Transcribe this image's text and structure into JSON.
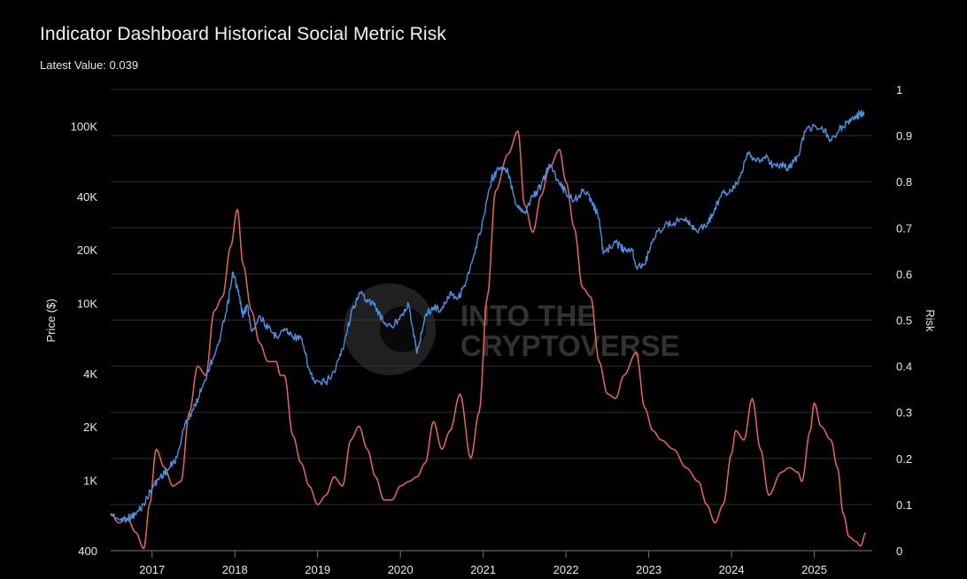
{
  "header": {
    "title": "Indicator Dashboard Historical Social Metric Risk",
    "latest_label": "Latest Value:",
    "latest_value": "0.039"
  },
  "watermark": {
    "line1": "INTO THE",
    "line2": "CRYPTOVERSE"
  },
  "colors": {
    "price": "#4f8fe0",
    "risk": "#e8665c",
    "grid": "#2f2f2f",
    "background": "#000000"
  },
  "chart_data": {
    "type": "line",
    "title": "Indicator Dashboard Historical Social Metric Risk",
    "xlabel": "",
    "ylabel_left": "Price ($)",
    "ylabel_right": "Risk",
    "y_left_scale": "log",
    "y_left_range": [
      400,
      200000
    ],
    "y_left_ticks": [
      {
        "value": 400,
        "label": "400"
      },
      {
        "value": 1000,
        "label": "1K"
      },
      {
        "value": 2000,
        "label": "2K"
      },
      {
        "value": 4000,
        "label": "4K"
      },
      {
        "value": 10000,
        "label": "10K"
      },
      {
        "value": 20000,
        "label": "20K"
      },
      {
        "value": 40000,
        "label": "40K"
      },
      {
        "value": 100000,
        "label": "100K"
      }
    ],
    "y_right_range": [
      0,
      1
    ],
    "y_right_ticks": [
      {
        "value": 0,
        "label": "0"
      },
      {
        "value": 0.1,
        "label": "0.1"
      },
      {
        "value": 0.2,
        "label": "0.2"
      },
      {
        "value": 0.3,
        "label": "0.3"
      },
      {
        "value": 0.4,
        "label": "0.4"
      },
      {
        "value": 0.5,
        "label": "0.5"
      },
      {
        "value": 0.6,
        "label": "0.6"
      },
      {
        "value": 0.7,
        "label": "0.7"
      },
      {
        "value": 0.8,
        "label": "0.8"
      },
      {
        "value": 0.9,
        "label": "0.9"
      },
      {
        "value": 1,
        "label": "1"
      }
    ],
    "x_range": [
      2016.5,
      2025.7
    ],
    "x_ticks": [
      {
        "value": 2017,
        "label": "2017"
      },
      {
        "value": 2018,
        "label": "2018"
      },
      {
        "value": 2019,
        "label": "2019"
      },
      {
        "value": 2020,
        "label": "2020"
      },
      {
        "value": 2021,
        "label": "2021"
      },
      {
        "value": 2022,
        "label": "2022"
      },
      {
        "value": 2023,
        "label": "2023"
      },
      {
        "value": 2024,
        "label": "2024"
      },
      {
        "value": 2025,
        "label": "2025"
      }
    ],
    "grid": true,
    "series": [
      {
        "key": "price",
        "axis": "left",
        "points": [
          [
            2016.5,
            650
          ],
          [
            2016.6,
            600
          ],
          [
            2016.7,
            610
          ],
          [
            2016.8,
            640
          ],
          [
            2016.9,
            730
          ],
          [
            2017.0,
            900
          ],
          [
            2017.1,
            1050
          ],
          [
            2017.2,
            1150
          ],
          [
            2017.3,
            1350
          ],
          [
            2017.4,
            2100
          ],
          [
            2017.5,
            2500
          ],
          [
            2017.6,
            3300
          ],
          [
            2017.7,
            4500
          ],
          [
            2017.8,
            5800
          ],
          [
            2017.9,
            9000
          ],
          [
            2017.98,
            15000
          ],
          [
            2018.05,
            11000
          ],
          [
            2018.1,
            8500
          ],
          [
            2018.15,
            9800
          ],
          [
            2018.2,
            7000
          ],
          [
            2018.3,
            8500
          ],
          [
            2018.4,
            7200
          ],
          [
            2018.5,
            6500
          ],
          [
            2018.6,
            7200
          ],
          [
            2018.7,
            6500
          ],
          [
            2018.8,
            6300
          ],
          [
            2018.9,
            4200
          ],
          [
            2018.97,
            3500
          ],
          [
            2019.1,
            3600
          ],
          [
            2019.2,
            4100
          ],
          [
            2019.3,
            5500
          ],
          [
            2019.4,
            8500
          ],
          [
            2019.5,
            11500
          ],
          [
            2019.6,
            10500
          ],
          [
            2019.7,
            9500
          ],
          [
            2019.8,
            7800
          ],
          [
            2019.9,
            7300
          ],
          [
            2020.0,
            8500
          ],
          [
            2020.1,
            9800
          ],
          [
            2020.2,
            5200
          ],
          [
            2020.3,
            8500
          ],
          [
            2020.4,
            9500
          ],
          [
            2020.5,
            9200
          ],
          [
            2020.6,
            11500
          ],
          [
            2020.7,
            10700
          ],
          [
            2020.8,
            13500
          ],
          [
            2020.9,
            19000
          ],
          [
            2021.0,
            30000
          ],
          [
            2021.1,
            50000
          ],
          [
            2021.2,
            58000
          ],
          [
            2021.3,
            55000
          ],
          [
            2021.4,
            36000
          ],
          [
            2021.5,
            33000
          ],
          [
            2021.6,
            40000
          ],
          [
            2021.7,
            46000
          ],
          [
            2021.8,
            61000
          ],
          [
            2021.9,
            50000
          ],
          [
            2022.0,
            42000
          ],
          [
            2022.1,
            38000
          ],
          [
            2022.2,
            43000
          ],
          [
            2022.3,
            39000
          ],
          [
            2022.4,
            30000
          ],
          [
            2022.45,
            19000
          ],
          [
            2022.6,
            22000
          ],
          [
            2022.7,
            20000
          ],
          [
            2022.8,
            20000
          ],
          [
            2022.85,
            16000
          ],
          [
            2022.95,
            16500
          ],
          [
            2023.05,
            23000
          ],
          [
            2023.2,
            28000
          ],
          [
            2023.3,
            28500
          ],
          [
            2023.45,
            30500
          ],
          [
            2023.55,
            26000
          ],
          [
            2023.7,
            27000
          ],
          [
            2023.8,
            34500
          ],
          [
            2023.9,
            42000
          ],
          [
            2024.0,
            43000
          ],
          [
            2024.1,
            51000
          ],
          [
            2024.2,
            69000
          ],
          [
            2024.3,
            63000
          ],
          [
            2024.4,
            67000
          ],
          [
            2024.5,
            60000
          ],
          [
            2024.6,
            61000
          ],
          [
            2024.7,
            58000
          ],
          [
            2024.8,
            68000
          ],
          [
            2024.9,
            95000
          ],
          [
            2025.0,
            100000
          ],
          [
            2025.1,
            97000
          ],
          [
            2025.2,
            84000
          ],
          [
            2025.3,
            95000
          ],
          [
            2025.4,
            105000
          ],
          [
            2025.5,
            110000
          ],
          [
            2025.55,
            118000
          ],
          [
            2025.6,
            115000
          ]
        ]
      },
      {
        "key": "risk",
        "axis": "right",
        "points": [
          [
            2016.5,
            0.08
          ],
          [
            2016.6,
            0.06
          ],
          [
            2016.7,
            0.07
          ],
          [
            2016.8,
            0.04
          ],
          [
            2016.9,
            0.005
          ],
          [
            2016.97,
            0.1
          ],
          [
            2017.05,
            0.22
          ],
          [
            2017.15,
            0.18
          ],
          [
            2017.25,
            0.14
          ],
          [
            2017.35,
            0.15
          ],
          [
            2017.45,
            0.3
          ],
          [
            2017.55,
            0.4
          ],
          [
            2017.65,
            0.38
          ],
          [
            2017.75,
            0.52
          ],
          [
            2017.85,
            0.55
          ],
          [
            2017.95,
            0.66
          ],
          [
            2018.03,
            0.74
          ],
          [
            2018.1,
            0.62
          ],
          [
            2018.2,
            0.52
          ],
          [
            2018.3,
            0.45
          ],
          [
            2018.4,
            0.41
          ],
          [
            2018.5,
            0.41
          ],
          [
            2018.55,
            0.38
          ],
          [
            2018.6,
            0.38
          ],
          [
            2018.7,
            0.25
          ],
          [
            2018.8,
            0.19
          ],
          [
            2018.9,
            0.14
          ],
          [
            2019.0,
            0.1
          ],
          [
            2019.1,
            0.12
          ],
          [
            2019.2,
            0.16
          ],
          [
            2019.3,
            0.14
          ],
          [
            2019.4,
            0.24
          ],
          [
            2019.5,
            0.27
          ],
          [
            2019.6,
            0.22
          ],
          [
            2019.7,
            0.16
          ],
          [
            2019.8,
            0.11
          ],
          [
            2019.9,
            0.11
          ],
          [
            2020.0,
            0.14
          ],
          [
            2020.1,
            0.15
          ],
          [
            2020.2,
            0.16
          ],
          [
            2020.3,
            0.19
          ],
          [
            2020.4,
            0.28
          ],
          [
            2020.5,
            0.22
          ],
          [
            2020.6,
            0.26
          ],
          [
            2020.72,
            0.34
          ],
          [
            2020.85,
            0.2
          ],
          [
            2020.95,
            0.3
          ],
          [
            2021.05,
            0.55
          ],
          [
            2021.15,
            0.78
          ],
          [
            2021.3,
            0.86
          ],
          [
            2021.42,
            0.91
          ],
          [
            2021.5,
            0.75
          ],
          [
            2021.6,
            0.69
          ],
          [
            2021.7,
            0.77
          ],
          [
            2021.8,
            0.83
          ],
          [
            2021.92,
            0.87
          ],
          [
            2022.0,
            0.8
          ],
          [
            2022.1,
            0.7
          ],
          [
            2022.2,
            0.57
          ],
          [
            2022.3,
            0.55
          ],
          [
            2022.4,
            0.41
          ],
          [
            2022.5,
            0.34
          ],
          [
            2022.6,
            0.33
          ],
          [
            2022.7,
            0.38
          ],
          [
            2022.85,
            0.43
          ],
          [
            2022.95,
            0.31
          ],
          [
            2023.05,
            0.26
          ],
          [
            2023.15,
            0.24
          ],
          [
            2023.3,
            0.22
          ],
          [
            2023.45,
            0.18
          ],
          [
            2023.6,
            0.15
          ],
          [
            2023.7,
            0.1
          ],
          [
            2023.8,
            0.06
          ],
          [
            2023.9,
            0.1
          ],
          [
            2024.0,
            0.21
          ],
          [
            2024.05,
            0.26
          ],
          [
            2024.15,
            0.24
          ],
          [
            2024.25,
            0.33
          ],
          [
            2024.35,
            0.22
          ],
          [
            2024.45,
            0.12
          ],
          [
            2024.6,
            0.17
          ],
          [
            2024.7,
            0.18
          ],
          [
            2024.8,
            0.17
          ],
          [
            2024.85,
            0.15
          ],
          [
            2024.95,
            0.26
          ],
          [
            2025.0,
            0.32
          ],
          [
            2025.08,
            0.27
          ],
          [
            2025.2,
            0.24
          ],
          [
            2025.28,
            0.18
          ],
          [
            2025.35,
            0.08
          ],
          [
            2025.42,
            0.03
          ],
          [
            2025.5,
            0.02
          ],
          [
            2025.56,
            0.01
          ],
          [
            2025.62,
            0.039
          ]
        ]
      }
    ]
  }
}
